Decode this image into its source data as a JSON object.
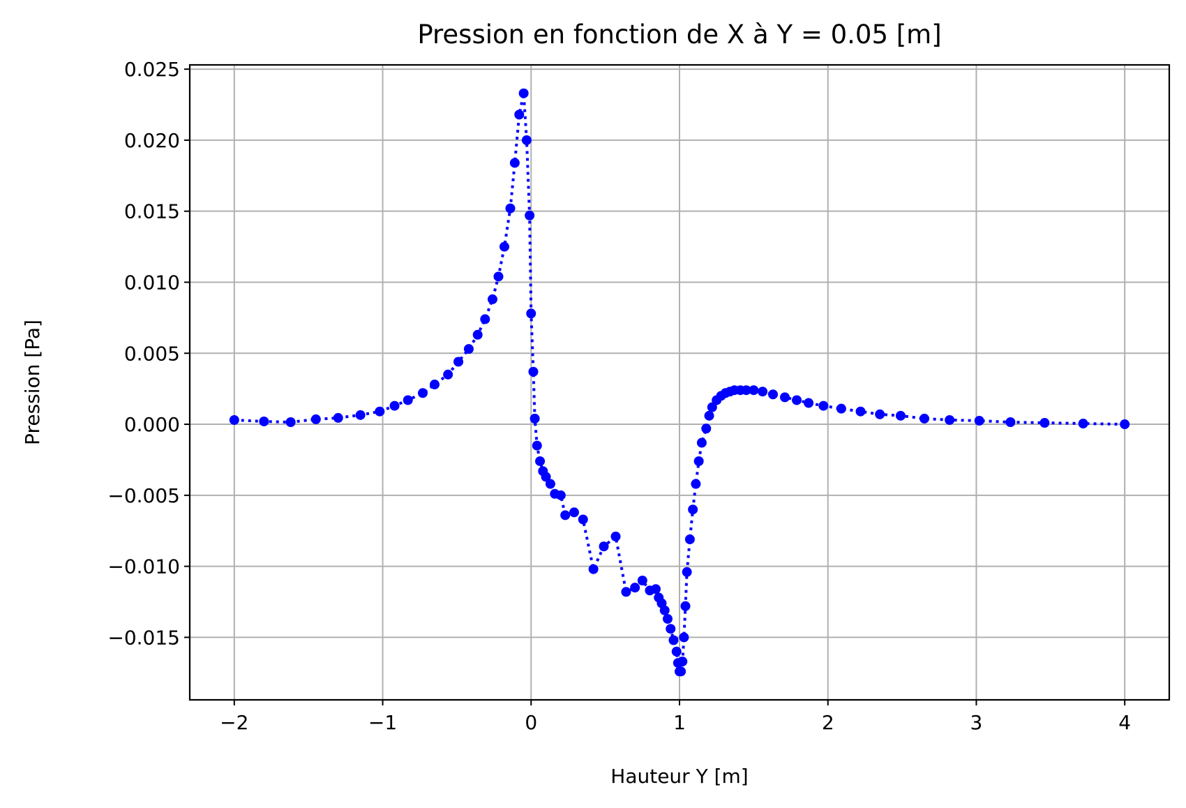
{
  "chart_data": {
    "type": "line",
    "title": "Pression en fonction de X à Y = 0.05 [m]",
    "xlabel": "Hauteur Y [m]",
    "ylabel": "Pression [Pa]",
    "xlim": [
      -2.3,
      4.3
    ],
    "ylim": [
      -0.0194,
      0.0253
    ],
    "xticks": [
      -2,
      -1,
      0,
      1,
      2,
      3,
      4
    ],
    "xtick_labels": [
      "−2",
      "−1",
      "0",
      "1",
      "2",
      "3",
      "4"
    ],
    "yticks": [
      -0.015,
      -0.01,
      -0.005,
      0.0,
      0.005,
      0.01,
      0.015,
      0.02,
      0.025
    ],
    "ytick_labels": [
      "−0.015",
      "−0.010",
      "−0.005",
      "0.000",
      "0.005",
      "0.010",
      "0.015",
      "0.020",
      "0.025"
    ],
    "grid": true,
    "series": [
      {
        "color": "#0000ff",
        "line_style": "dotted",
        "marker": "circle",
        "x": [
          -2.0,
          -1.8,
          -1.62,
          -1.45,
          -1.3,
          -1.15,
          -1.02,
          -0.92,
          -0.83,
          -0.73,
          -0.65,
          -0.56,
          -0.49,
          -0.42,
          -0.36,
          -0.31,
          -0.26,
          -0.22,
          -0.18,
          -0.14,
          -0.11,
          -0.08,
          -0.05,
          -0.03,
          -0.01,
          0.0,
          0.015,
          0.025,
          0.04,
          0.06,
          0.08,
          0.1,
          0.13,
          0.16,
          0.2,
          0.23,
          0.29,
          0.35,
          0.42,
          0.49,
          0.57,
          0.64,
          0.7,
          0.75,
          0.8,
          0.84,
          0.86,
          0.88,
          0.9,
          0.92,
          0.94,
          0.96,
          0.98,
          0.99,
          1.0,
          1.01,
          1.02,
          1.03,
          1.04,
          1.05,
          1.07,
          1.09,
          1.11,
          1.13,
          1.15,
          1.18,
          1.2,
          1.22,
          1.25,
          1.28,
          1.31,
          1.34,
          1.37,
          1.41,
          1.45,
          1.5,
          1.56,
          1.63,
          1.71,
          1.79,
          1.87,
          1.97,
          2.09,
          2.22,
          2.35,
          2.49,
          2.65,
          2.82,
          3.02,
          3.23,
          3.46,
          3.72,
          4.0
        ],
        "y": [
          0.0003,
          0.0002,
          0.00015,
          0.00035,
          0.00045,
          0.00065,
          0.0009,
          0.0013,
          0.0017,
          0.0022,
          0.0028,
          0.0035,
          0.0044,
          0.0053,
          0.0063,
          0.0074,
          0.0088,
          0.0104,
          0.0125,
          0.0152,
          0.0184,
          0.0218,
          0.0233,
          0.02,
          0.0147,
          0.0078,
          0.0037,
          0.0004,
          -0.0015,
          -0.0026,
          -0.0033,
          -0.0037,
          -0.0042,
          -0.0049,
          -0.005,
          -0.0064,
          -0.0062,
          -0.0067,
          -0.0102,
          -0.0086,
          -0.0079,
          -0.0118,
          -0.0115,
          -0.011,
          -0.0117,
          -0.0116,
          -0.0122,
          -0.0126,
          -0.0131,
          -0.0137,
          -0.0144,
          -0.0152,
          -0.016,
          -0.0168,
          -0.0174,
          -0.0174,
          -0.0167,
          -0.015,
          -0.0128,
          -0.0104,
          -0.0081,
          -0.006,
          -0.0042,
          -0.0026,
          -0.0013,
          -0.0003,
          0.0006,
          0.0012,
          0.0017,
          0.002,
          0.0022,
          0.0023,
          0.0024,
          0.0024,
          0.0024,
          0.0024,
          0.0023,
          0.0021,
          0.0019,
          0.0017,
          0.0015,
          0.0013,
          0.0011,
          0.0009,
          0.0007,
          0.0006,
          0.0004,
          0.0003,
          0.00025,
          0.00015,
          0.0001,
          5e-05,
          0.0
        ]
      }
    ]
  }
}
